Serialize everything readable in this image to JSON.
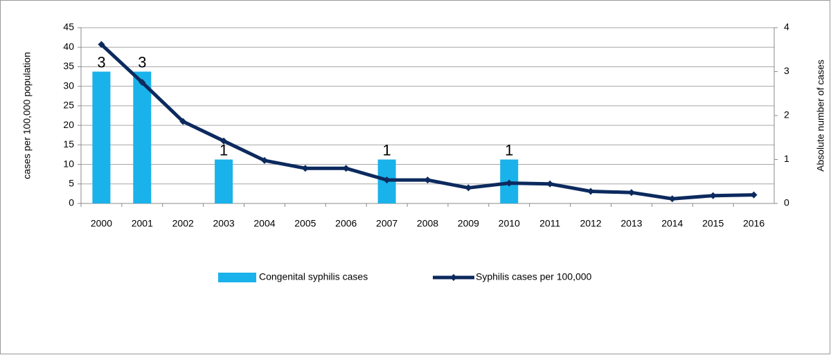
{
  "chart_data": {
    "type": "bar+line",
    "categories": [
      "2000",
      "2001",
      "2002",
      "2003",
      "2004",
      "2005",
      "2006",
      "2007",
      "2008",
      "2009",
      "2010",
      "2011",
      "2012",
      "2013",
      "2014",
      "2015",
      "2016"
    ],
    "series": [
      {
        "name": "Congenital syphilis cases",
        "type": "bar",
        "axis": "y2",
        "color": "#1ab2ea",
        "values": [
          3,
          3,
          null,
          1,
          null,
          null,
          null,
          1,
          null,
          null,
          1,
          null,
          null,
          null,
          null,
          null,
          null
        ]
      },
      {
        "name": "Syphilis cases per 100,000",
        "type": "line",
        "axis": "y",
        "color": "#0c2a5e",
        "values": [
          40.7,
          31,
          21,
          16,
          11,
          9,
          9,
          6,
          6,
          4,
          5.2,
          5,
          3.1,
          2.8,
          1.2,
          2,
          2.2
        ]
      }
    ],
    "ylabel": "cases per 100,000 population",
    "y2label": "Absolute number of cases",
    "ylim": [
      0,
      45
    ],
    "yticks": [
      0,
      5,
      10,
      15,
      20,
      25,
      30,
      35,
      40,
      45
    ],
    "y2lim": [
      0,
      4
    ],
    "y2ticks": [
      0,
      1,
      2,
      3,
      4
    ],
    "grid": true,
    "legend": "bottom"
  }
}
